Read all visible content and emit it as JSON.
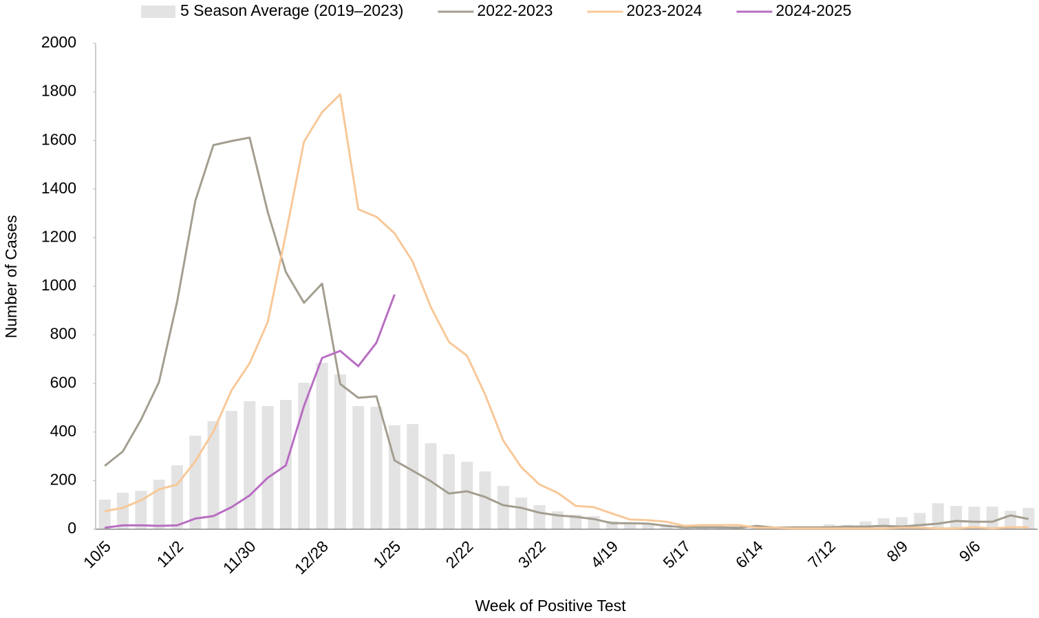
{
  "chart_data": {
    "type": "combo",
    "x_label": "Week of Positive Test",
    "y_label": "Number of Cases",
    "categories": [
      "10/5",
      null,
      null,
      null,
      "11/2",
      null,
      null,
      null,
      "11/30",
      null,
      null,
      null,
      "12/28",
      null,
      null,
      null,
      "1/25",
      null,
      null,
      null,
      "2/22",
      null,
      null,
      null,
      "3/22",
      null,
      null,
      null,
      "4/19",
      null,
      null,
      null,
      "5/17",
      null,
      null,
      null,
      "6/14",
      null,
      null,
      null,
      "7/12",
      null,
      null,
      null,
      "8/9",
      null,
      null,
      null,
      "9/6",
      null,
      null,
      null
    ],
    "ylim": [
      0,
      2000
    ],
    "yticks": [
      0,
      200,
      400,
      600,
      800,
      1000,
      1200,
      1400,
      1600,
      1800,
      2000
    ],
    "grid": false,
    "legend": "top",
    "series": [
      {
        "name": "5 Season Average (2019–2023)",
        "type": "bar",
        "color": "#e3e3e3",
        "values": [
          122,
          150,
          158,
          204,
          263,
          385,
          445,
          487,
          527,
          507,
          532,
          603,
          685,
          637,
          507,
          504,
          428,
          433,
          354,
          309,
          278,
          238,
          178,
          130,
          99,
          74,
          60,
          54,
          34,
          26,
          25,
          20,
          14,
          12,
          11,
          12,
          6,
          5,
          5,
          6,
          20,
          18,
          32,
          45,
          50,
          67,
          107,
          96,
          93,
          93,
          76,
          88
        ]
      },
      {
        "name": "2022-2023",
        "type": "line",
        "color": "#a39e90",
        "values": [
          261,
          320,
          450,
          606,
          938,
          1351,
          1581,
          1598,
          1612,
          1306,
          1059,
          932,
          1011,
          598,
          541,
          547,
          283,
          241,
          198,
          147,
          156,
          133,
          99,
          88,
          68,
          57,
          51,
          42,
          25,
          25,
          23,
          14,
          8,
          8,
          8,
          6,
          14,
          6,
          8,
          8,
          8,
          11,
          11,
          14,
          11,
          17,
          23,
          34,
          31,
          31,
          57,
          42
        ]
      },
      {
        "name": "2023-2024",
        "type": "line",
        "color": "#f8c898",
        "values": [
          74,
          88,
          119,
          164,
          184,
          280,
          402,
          572,
          683,
          853,
          1215,
          1595,
          1717,
          1790,
          1317,
          1286,
          1218,
          1102,
          915,
          771,
          714,
          555,
          365,
          255,
          184,
          150,
          96,
          91,
          65,
          40,
          37,
          31,
          14,
          17,
          17,
          17,
          6,
          6,
          3,
          3,
          3,
          3,
          3,
          3,
          6,
          6,
          3,
          3,
          8,
          3,
          8,
          8
        ]
      },
      {
        "name": "2024-2025",
        "type": "line",
        "color": "#b86dc2",
        "values": [
          6,
          16,
          16,
          14,
          16,
          44,
          54,
          91,
          139,
          212,
          263,
          507,
          705,
          734,
          671,
          768,
          966,
          null,
          null,
          null,
          null,
          null,
          null,
          null,
          null,
          null,
          null,
          null,
          null,
          null,
          null,
          null,
          null,
          null,
          null,
          null,
          null,
          null,
          null,
          null,
          null,
          null,
          null,
          null,
          null,
          null,
          null,
          null,
          null,
          null,
          null,
          null
        ]
      }
    ]
  }
}
